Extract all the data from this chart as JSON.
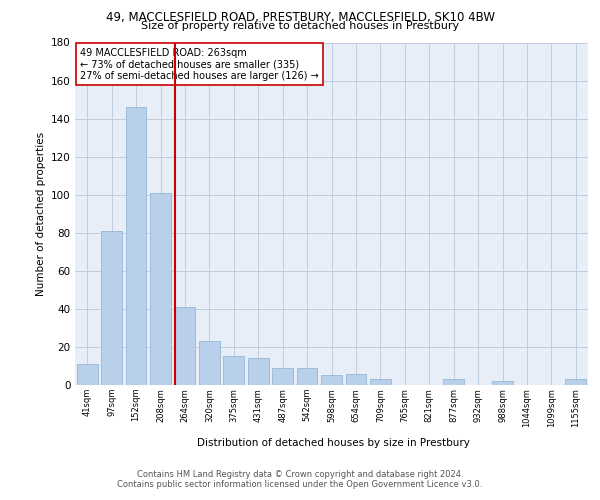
{
  "title_line1": "49, MACCLESFIELD ROAD, PRESTBURY, MACCLESFIELD, SK10 4BW",
  "title_line2": "Size of property relative to detached houses in Prestbury",
  "xlabel": "Distribution of detached houses by size in Prestbury",
  "ylabel": "Number of detached properties",
  "categories": [
    "41sqm",
    "97sqm",
    "152sqm",
    "208sqm",
    "264sqm",
    "320sqm",
    "375sqm",
    "431sqm",
    "487sqm",
    "542sqm",
    "598sqm",
    "654sqm",
    "709sqm",
    "765sqm",
    "821sqm",
    "877sqm",
    "932sqm",
    "988sqm",
    "1044sqm",
    "1099sqm",
    "1155sqm"
  ],
  "values": [
    11,
    81,
    146,
    101,
    41,
    23,
    15,
    14,
    9,
    9,
    5,
    6,
    3,
    0,
    0,
    3,
    0,
    2,
    0,
    0,
    3
  ],
  "bar_color": "#b8d0ea",
  "bar_edge_color": "#8ab0d0",
  "red_line_x": 3.575,
  "annotation_text": "49 MACCLESFIELD ROAD: 263sqm\n← 73% of detached houses are smaller (335)\n27% of semi-detached houses are larger (126) →",
  "ylim": [
    0,
    180
  ],
  "yticks": [
    0,
    20,
    40,
    60,
    80,
    100,
    120,
    140,
    160,
    180
  ],
  "bg_color": "#e8eef8",
  "grid_color": "#c0ccdc",
  "footer_line1": "Contains HM Land Registry data © Crown copyright and database right 2024.",
  "footer_line2": "Contains public sector information licensed under the Open Government Licence v3.0."
}
